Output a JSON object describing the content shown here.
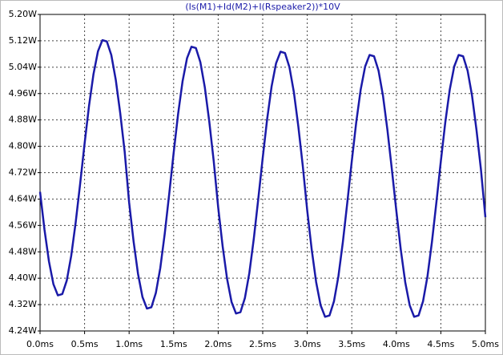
{
  "chart_data": {
    "type": "line",
    "title": "(Is(M1)+Id(M2)+I(Rspeaker2))*10V",
    "x": [
      0,
      0.05,
      0.1,
      0.15,
      0.2,
      0.25,
      0.3,
      0.35,
      0.4,
      0.45,
      0.5,
      0.55,
      0.6,
      0.65,
      0.7,
      0.75,
      0.8,
      0.85,
      0.9,
      0.95,
      1,
      1.05,
      1.1,
      1.15,
      1.2,
      1.25,
      1.3,
      1.35,
      1.4,
      1.45,
      1.5,
      1.55,
      1.6,
      1.65,
      1.7,
      1.75,
      1.8,
      1.85,
      1.9,
      1.95,
      2,
      2.05,
      2.1,
      2.15,
      2.2,
      2.25,
      2.3,
      2.35,
      2.4,
      2.45,
      2.5,
      2.55,
      2.6,
      2.65,
      2.7,
      2.75,
      2.8,
      2.85,
      2.9,
      2.95,
      3,
      3.05,
      3.1,
      3.15,
      3.2,
      3.25,
      3.3,
      3.35,
      3.4,
      3.45,
      3.5,
      3.55,
      3.6,
      3.65,
      3.7,
      3.75,
      3.8,
      3.85,
      3.9,
      3.95,
      4,
      4.05,
      4.1,
      4.15,
      4.2,
      4.25,
      4.3,
      4.35,
      4.4,
      4.45,
      4.5,
      4.55,
      4.6,
      4.65,
      4.7,
      4.75,
      4.8,
      4.85,
      4.9,
      4.95,
      5
    ],
    "series": [
      {
        "color": "#1a1aa8",
        "values": [
          4.662,
          4.547,
          4.451,
          4.382,
          4.348,
          4.352,
          4.393,
          4.468,
          4.569,
          4.686,
          4.808,
          4.923,
          5.019,
          5.088,
          5.122,
          5.118,
          5.077,
          5.002,
          4.901,
          4.784,
          4.63,
          4.512,
          4.413,
          4.343,
          4.308,
          4.312,
          4.355,
          4.431,
          4.535,
          4.655,
          4.78,
          4.898,
          4.997,
          5.067,
          5.102,
          5.098,
          5.055,
          4.979,
          4.875,
          4.755,
          4.615,
          4.497,
          4.398,
          4.328,
          4.293,
          4.297,
          4.34,
          4.416,
          4.52,
          4.64,
          4.765,
          4.883,
          4.982,
          5.052,
          5.087,
          5.083,
          5.04,
          4.964,
          4.86,
          4.74,
          4.605,
          4.487,
          4.388,
          4.318,
          4.283,
          4.287,
          4.33,
          4.406,
          4.51,
          4.63,
          4.755,
          4.873,
          4.972,
          5.042,
          5.077,
          5.073,
          5.03,
          4.954,
          4.85,
          4.73,
          4.605,
          4.487,
          4.388,
          4.318,
          4.283,
          4.287,
          4.33,
          4.406,
          4.51,
          4.63,
          4.755,
          4.873,
          4.972,
          5.042,
          5.077,
          5.073,
          5.03,
          4.954,
          4.85,
          4.73,
          4.585
        ]
      }
    ],
    "xlim": [
      0,
      5
    ],
    "ylim": [
      4.24,
      5.2
    ],
    "xticks": [
      {
        "value": 0,
        "label": "0.0ms"
      },
      {
        "value": 0.5,
        "label": "0.5ms"
      },
      {
        "value": 1,
        "label": "1.0ms"
      },
      {
        "value": 1.5,
        "label": "1.5ms"
      },
      {
        "value": 2,
        "label": "2.0ms"
      },
      {
        "value": 2.5,
        "label": "2.5ms"
      },
      {
        "value": 3,
        "label": "3.0ms"
      },
      {
        "value": 3.5,
        "label": "3.5ms"
      },
      {
        "value": 4,
        "label": "4.0ms"
      },
      {
        "value": 4.5,
        "label": "4.5ms"
      },
      {
        "value": 5,
        "label": "5.0ms"
      }
    ],
    "yticks": [
      {
        "value": 4.24,
        "label": "4.24W"
      },
      {
        "value": 4.32,
        "label": "4.32W"
      },
      {
        "value": 4.4,
        "label": "4.40W"
      },
      {
        "value": 4.48,
        "label": "4.48W"
      },
      {
        "value": 4.56,
        "label": "4.56W"
      },
      {
        "value": 4.64,
        "label": "4.64W"
      },
      {
        "value": 4.72,
        "label": "4.72W"
      },
      {
        "value": 4.8,
        "label": "4.80W"
      },
      {
        "value": 4.88,
        "label": "4.88W"
      },
      {
        "value": 4.96,
        "label": "4.96W"
      },
      {
        "value": 5.04,
        "label": "5.04W"
      },
      {
        "value": 5.12,
        "label": "5.12W"
      },
      {
        "value": 5.2,
        "label": "5.20W"
      }
    ],
    "grid": true
  }
}
